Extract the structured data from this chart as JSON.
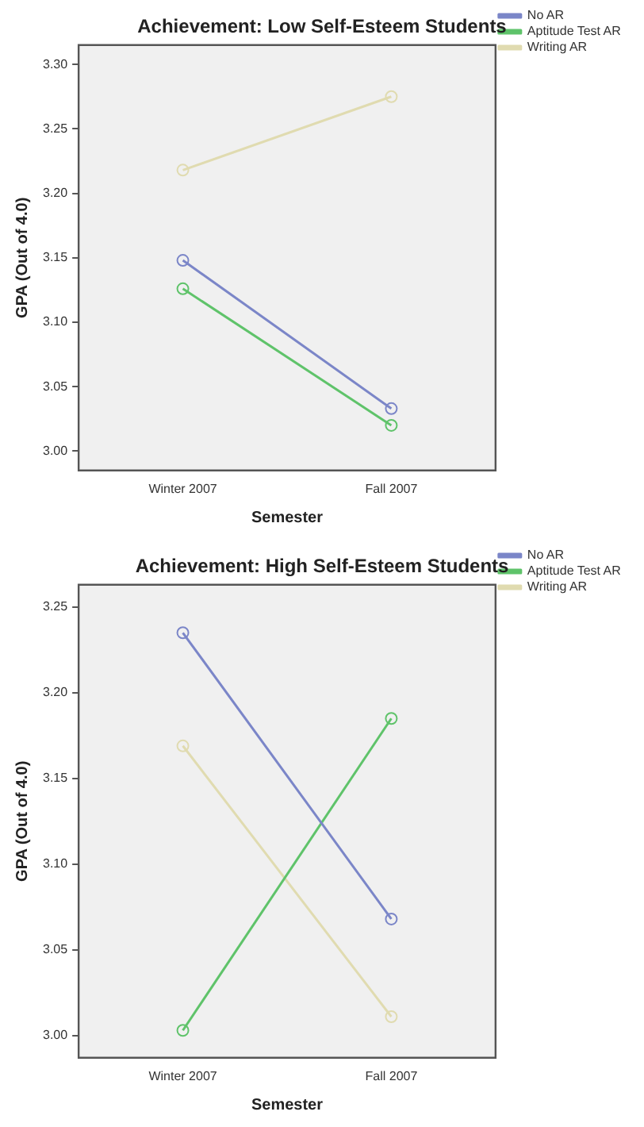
{
  "chart_data": [
    {
      "type": "line",
      "title": "Achievement: Low Self-Esteem Students",
      "xlabel": "Semester",
      "ylabel": "GPA (Out of 4.0)",
      "categories": [
        "Winter 2007",
        "Fall 2007"
      ],
      "series": [
        {
          "name": "No AR",
          "color": "#7b86c8",
          "values": [
            3.148,
            3.033
          ]
        },
        {
          "name": "Aptitude Test AR",
          "color": "#5fc36a",
          "values": [
            3.126,
            3.02
          ]
        },
        {
          "name": "Writing AR",
          "color": "#e0dbb0",
          "values": [
            3.218,
            3.275
          ]
        }
      ],
      "ylim": [
        2.985,
        3.315
      ],
      "yticks": [
        {
          "value": 3.0,
          "label": "3.00"
        },
        {
          "value": 3.05,
          "label": "3.05"
        },
        {
          "value": 3.1,
          "label": "3.10"
        },
        {
          "value": 3.15,
          "label": "3.15"
        },
        {
          "value": 3.2,
          "label": "3.20"
        },
        {
          "value": 3.25,
          "label": "3.25"
        },
        {
          "value": 3.3,
          "label": "3.30"
        }
      ],
      "legend": "top right",
      "marker": "circle",
      "grid": false
    },
    {
      "type": "line",
      "title": "Achievement: High Self-Esteem Students",
      "xlabel": "Semester",
      "ylabel": "GPA (Out of 4.0)",
      "categories": [
        "Winter 2007",
        "Fall 2007"
      ],
      "series": [
        {
          "name": "No AR",
          "color": "#7b86c8",
          "values": [
            3.235,
            3.068
          ]
        },
        {
          "name": "Aptitude Test AR",
          "color": "#5fc36a",
          "values": [
            3.003,
            3.185
          ]
        },
        {
          "name": "Writing AR",
          "color": "#e0dbb0",
          "values": [
            3.169,
            3.011
          ]
        }
      ],
      "ylim": [
        2.987,
        3.263
      ],
      "yticks": [
        {
          "value": 3.0,
          "label": "3.00"
        },
        {
          "value": 3.05,
          "label": "3.05"
        },
        {
          "value": 3.1,
          "label": "3.10"
        },
        {
          "value": 3.15,
          "label": "3.15"
        },
        {
          "value": 3.2,
          "label": "3.20"
        },
        {
          "value": 3.25,
          "label": "3.25"
        }
      ],
      "legend": "top right",
      "marker": "circle",
      "grid": false
    }
  ]
}
